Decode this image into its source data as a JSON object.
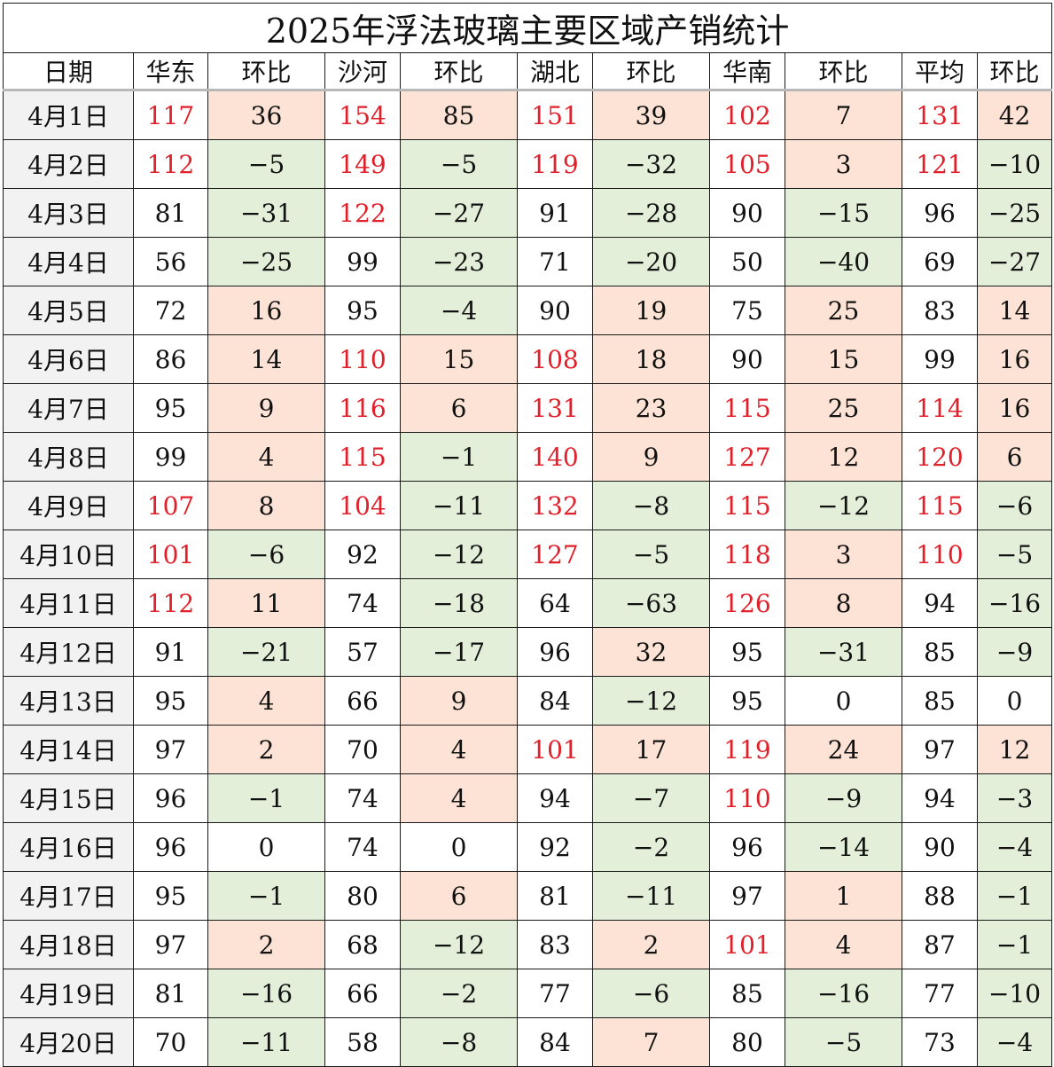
{
  "title": "2025年浮法玻璃主要区域产销统计",
  "headers": [
    "日期",
    "华东",
    "环比",
    "沙河",
    "环比",
    "湖北",
    "环比",
    "华南",
    "环比",
    "平均",
    "环比"
  ],
  "colors": {
    "value_high": "#e0202a",
    "change_positive_bg": "#fde3d5",
    "change_negative_bg": "#e3efd9",
    "date_bg": "#f2f2f2"
  },
  "rows": [
    {
      "date": "4月1日",
      "values": [
        117,
        36,
        154,
        85,
        151,
        39,
        102,
        7,
        131,
        42
      ]
    },
    {
      "date": "4月2日",
      "values": [
        112,
        -5,
        149,
        -5,
        119,
        -32,
        105,
        3,
        121,
        -10
      ]
    },
    {
      "date": "4月3日",
      "values": [
        81,
        -31,
        122,
        -27,
        91,
        -28,
        90,
        -15,
        96,
        -25
      ]
    },
    {
      "date": "4月4日",
      "values": [
        56,
        -25,
        99,
        -23,
        71,
        -20,
        50,
        -40,
        69,
        -27
      ]
    },
    {
      "date": "4月5日",
      "values": [
        72,
        16,
        95,
        -4,
        90,
        19,
        75,
        25,
        83,
        14
      ]
    },
    {
      "date": "4月6日",
      "values": [
        86,
        14,
        110,
        15,
        108,
        18,
        90,
        15,
        99,
        16
      ]
    },
    {
      "date": "4月7日",
      "values": [
        95,
        9,
        116,
        6,
        131,
        23,
        115,
        25,
        114,
        16
      ]
    },
    {
      "date": "4月8日",
      "values": [
        99,
        4,
        115,
        -1,
        140,
        9,
        127,
        12,
        120,
        6
      ]
    },
    {
      "date": "4月9日",
      "values": [
        107,
        8,
        104,
        -11,
        132,
        -8,
        115,
        -12,
        115,
        -6
      ]
    },
    {
      "date": "4月10日",
      "values": [
        101,
        -6,
        92,
        -12,
        127,
        -5,
        118,
        3,
        110,
        -5
      ]
    },
    {
      "date": "4月11日",
      "values": [
        112,
        11,
        74,
        -18,
        64,
        -63,
        126,
        8,
        94,
        -16
      ]
    },
    {
      "date": "4月12日",
      "values": [
        91,
        -21,
        57,
        -17,
        96,
        32,
        95,
        -31,
        85,
        -9
      ]
    },
    {
      "date": "4月13日",
      "values": [
        95,
        4,
        66,
        9,
        84,
        -12,
        95,
        0,
        85,
        0
      ]
    },
    {
      "date": "4月14日",
      "values": [
        97,
        2,
        70,
        4,
        101,
        17,
        119,
        24,
        97,
        12
      ]
    },
    {
      "date": "4月15日",
      "values": [
        96,
        -1,
        74,
        4,
        94,
        -7,
        110,
        -9,
        94,
        -3
      ]
    },
    {
      "date": "4月16日",
      "values": [
        96,
        0,
        74,
        0,
        92,
        -2,
        96,
        -14,
        90,
        -4
      ]
    },
    {
      "date": "4月17日",
      "values": [
        95,
        -1,
        80,
        6,
        81,
        -11,
        97,
        1,
        88,
        -1
      ]
    },
    {
      "date": "4月18日",
      "values": [
        97,
        2,
        68,
        -12,
        83,
        2,
        101,
        4,
        87,
        -1
      ]
    },
    {
      "date": "4月19日",
      "values": [
        81,
        -16,
        66,
        -2,
        77,
        -6,
        85,
        -16,
        77,
        -10
      ]
    },
    {
      "date": "4月20日",
      "values": [
        70,
        -11,
        58,
        -8,
        84,
        7,
        80,
        -5,
        73,
        -4
      ]
    }
  ]
}
